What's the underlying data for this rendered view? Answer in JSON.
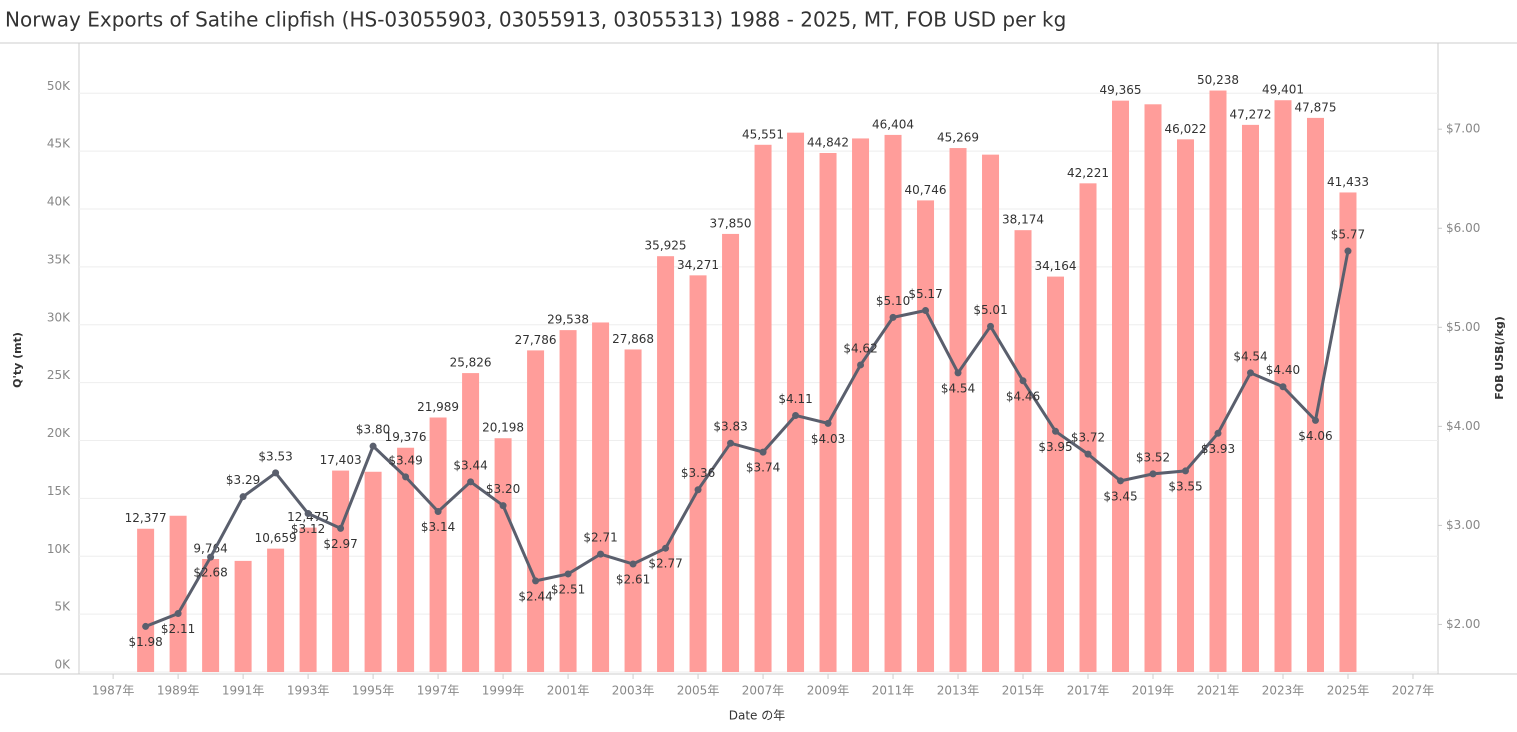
{
  "chart_data": {
    "type": "combo",
    "title": "Norway Exports of Satihe clipfish (HS-03055903, 03055913, 03055313) 1988 - 2025, MT, FOB USD per kg",
    "x_label": "Date の年",
    "y_label": "Q'ty (mt)",
    "y2_label": "FOB USB(/kg)",
    "x": [
      1988,
      1989,
      1990,
      1991,
      1992,
      1993,
      1994,
      1995,
      1996,
      1997,
      1998,
      1999,
      2000,
      2001,
      2002,
      2003,
      2004,
      2005,
      2006,
      2007,
      2008,
      2009,
      2010,
      2011,
      2012,
      2013,
      2014,
      2015,
      2016,
      2017,
      2018,
      2019,
      2020,
      2021,
      2022,
      2023,
      2024,
      2025
    ],
    "xlim": [
      1985.95,
      2027.77
    ],
    "xticks": [
      {
        "value": 1987,
        "label": "1987年"
      },
      {
        "value": 1989,
        "label": "1989年"
      },
      {
        "value": 1991,
        "label": "1991年"
      },
      {
        "value": 1993,
        "label": "1993年"
      },
      {
        "value": 1995,
        "label": "1995年"
      },
      {
        "value": 1997,
        "label": "1997年"
      },
      {
        "value": 1999,
        "label": "1999年"
      },
      {
        "value": 2001,
        "label": "2001年"
      },
      {
        "value": 2003,
        "label": "2003年"
      },
      {
        "value": 2005,
        "label": "2005年"
      },
      {
        "value": 2007,
        "label": "2007年"
      },
      {
        "value": 2009,
        "label": "2009年"
      },
      {
        "value": 2011,
        "label": "2011年"
      },
      {
        "value": 2013,
        "label": "2013年"
      },
      {
        "value": 2015,
        "label": "2015年"
      },
      {
        "value": 2017,
        "label": "2017年"
      },
      {
        "value": 2019,
        "label": "2019年"
      },
      {
        "value": 2021,
        "label": "2021年"
      },
      {
        "value": 2023,
        "label": "2023年"
      },
      {
        "value": 2025,
        "label": "2025年"
      },
      {
        "value": 2027,
        "label": "2027年"
      }
    ],
    "ylim": [
      0,
      54000
    ],
    "yticks": [
      {
        "value": 0,
        "label": "0K"
      },
      {
        "value": 5000,
        "label": "5K"
      },
      {
        "value": 10000,
        "label": "10K"
      },
      {
        "value": 15000,
        "label": "15K"
      },
      {
        "value": 20000,
        "label": "20K"
      },
      {
        "value": 25000,
        "label": "25K"
      },
      {
        "value": 30000,
        "label": "30K"
      },
      {
        "value": 35000,
        "label": "35K"
      },
      {
        "value": 40000,
        "label": "40K"
      },
      {
        "value": 45000,
        "label": "45K"
      },
      {
        "value": 50000,
        "label": "50K"
      }
    ],
    "y2lim": [
      1.52,
      7.83
    ],
    "y2ticks": [
      {
        "value": 2,
        "label": "$2.00"
      },
      {
        "value": 3,
        "label": "$3.00"
      },
      {
        "value": 4,
        "label": "$4.00"
      },
      {
        "value": 5,
        "label": "$5.00"
      },
      {
        "value": 6,
        "label": "$6.00"
      },
      {
        "value": 7,
        "label": "$7.00"
      }
    ],
    "grid": true,
    "series": [
      {
        "type": "bar",
        "color": "#ff9d9a",
        "values": [
          12377,
          13500,
          9764,
          9600,
          10659,
          12475,
          17403,
          17300,
          19376,
          21989,
          25826,
          20198,
          27786,
          29538,
          30200,
          27868,
          35925,
          34271,
          37850,
          45551,
          46600,
          44842,
          46100,
          46404,
          40746,
          45269,
          44700,
          38174,
          34164,
          42221,
          49365,
          49050,
          46022,
          50238,
          47272,
          49401,
          47875,
          41433
        ],
        "value_labels": [
          "12,377",
          null,
          "9,764",
          null,
          "10,659",
          "12,475",
          "17,403",
          null,
          "19,376",
          "21,989",
          "25,826",
          "20,198",
          "27,786",
          "29,538",
          null,
          "27,868",
          "35,925",
          "34,271",
          "37,850",
          "45,551",
          null,
          "44,842",
          null,
          "46,404",
          "40,746",
          "45,269",
          null,
          "38,174",
          "34,164",
          "42,221",
          "49,365",
          null,
          "46,022",
          "50,238",
          "47,272",
          "49,401",
          "47,875",
          "41,433"
        ]
      },
      {
        "type": "line",
        "axis": "y2",
        "color": "#5a5f6d",
        "values": [
          1.98,
          2.11,
          2.68,
          3.29,
          3.53,
          3.12,
          2.97,
          3.8,
          3.49,
          3.14,
          3.44,
          3.2,
          2.44,
          2.51,
          2.71,
          2.61,
          2.77,
          3.36,
          3.83,
          3.74,
          4.11,
          4.03,
          4.62,
          5.1,
          5.17,
          4.54,
          5.01,
          4.46,
          3.95,
          3.72,
          3.45,
          3.52,
          3.55,
          3.93,
          4.54,
          4.4,
          4.06,
          5.77
        ],
        "value_labels": [
          "$1.98",
          "$2.11",
          "$2.68",
          "$3.29",
          "$3.53",
          "$3.12",
          "$2.97",
          "$3.80",
          "$3.49",
          "$3.14",
          "$3.44",
          "$3.20",
          "$2.44",
          "$2.51",
          "$2.71",
          "$2.61",
          "$2.77",
          "$3.36",
          "$3.83",
          "$3.74",
          "$4.11",
          "$4.03",
          "$4.62",
          "$5.10",
          "$5.17",
          "$4.54",
          "$5.01",
          "$4.46",
          "$3.95",
          "$3.72",
          "$3.45",
          "$3.52",
          "$3.55",
          "$3.93",
          "$4.54",
          "$4.40",
          "$4.06",
          "$5.77"
        ]
      }
    ]
  }
}
